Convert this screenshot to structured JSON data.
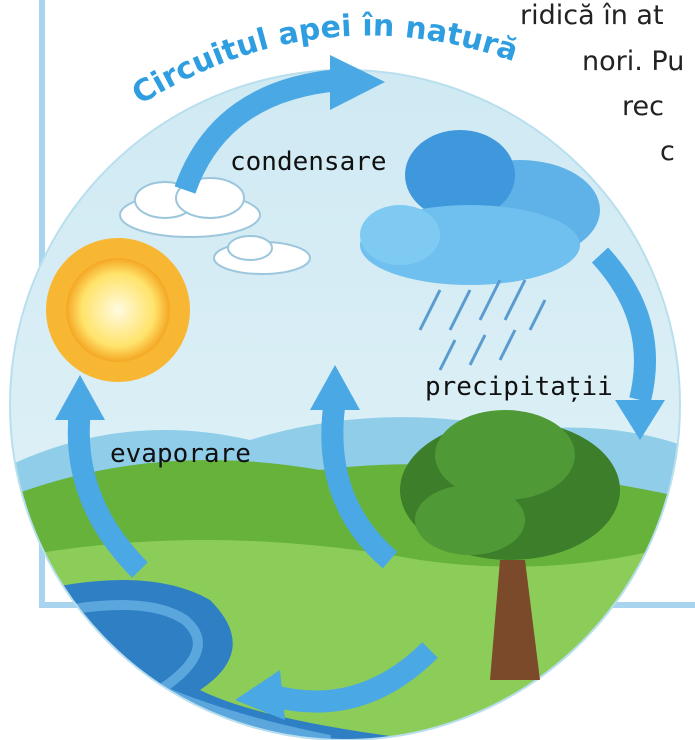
{
  "title": "Circuitul apei în natură",
  "labels": {
    "condensation": "condensare",
    "precipitation": "precipitații",
    "evaporation": "evaporare"
  },
  "background_text": [
    "ridică în at",
    "nori. Pu",
    "rec",
    "c"
  ]
}
